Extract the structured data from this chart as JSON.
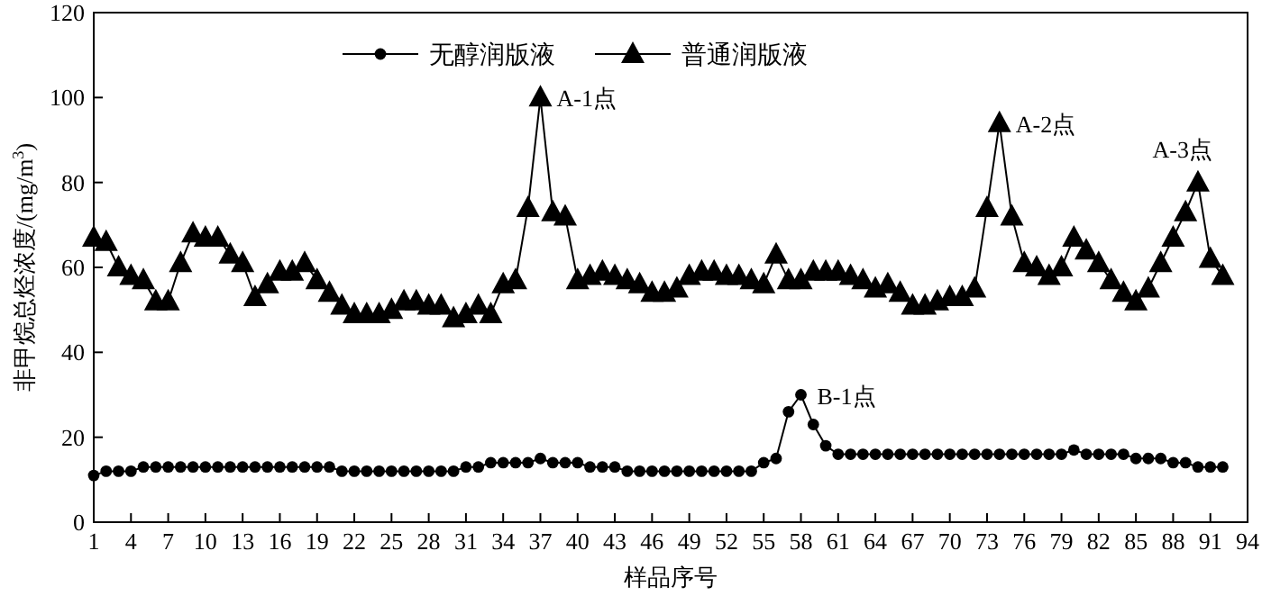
{
  "chart_data": {
    "type": "line",
    "xlabel": "样品序号",
    "ylabel": "非甲烷总烃浓度/(mg/m$^{3}$)",
    "x": [
      1,
      2,
      3,
      4,
      5,
      6,
      7,
      8,
      9,
      10,
      11,
      12,
      13,
      14,
      15,
      16,
      17,
      18,
      19,
      20,
      21,
      22,
      23,
      24,
      25,
      26,
      27,
      28,
      29,
      30,
      31,
      32,
      33,
      34,
      35,
      36,
      37,
      38,
      39,
      40,
      41,
      42,
      43,
      44,
      45,
      46,
      47,
      48,
      49,
      50,
      51,
      52,
      53,
      54,
      55,
      56,
      57,
      58,
      59,
      60,
      61,
      62,
      63,
      64,
      65,
      66,
      67,
      68,
      69,
      70,
      71,
      72,
      73,
      74,
      75,
      76,
      77,
      78,
      79,
      80,
      81,
      82,
      83,
      84,
      85,
      86,
      87,
      88,
      89,
      90,
      91,
      92
    ],
    "xlim": [
      1,
      94
    ],
    "xticks": [
      1,
      4,
      7,
      10,
      13,
      16,
      19,
      22,
      25,
      28,
      31,
      34,
      37,
      40,
      43,
      46,
      49,
      52,
      55,
      58,
      61,
      64,
      67,
      70,
      73,
      76,
      79,
      82,
      85,
      88,
      91,
      94
    ],
    "ylim": [
      0,
      120
    ],
    "yticks": [
      0,
      20,
      40,
      60,
      80,
      100,
      120
    ],
    "grid": false,
    "legend": "top",
    "line_style": "solid",
    "series": [
      {
        "name": "无醇润版液",
        "color": "#000000",
        "marker": "circle",
        "values": [
          11,
          12,
          12,
          12,
          13,
          13,
          13,
          13,
          13,
          13,
          13,
          13,
          13,
          13,
          13,
          13,
          13,
          13,
          13,
          13,
          12,
          12,
          12,
          12,
          12,
          12,
          12,
          12,
          12,
          12,
          13,
          13,
          14,
          14,
          14,
          14,
          15,
          14,
          14,
          14,
          13,
          13,
          13,
          12,
          12,
          12,
          12,
          12,
          12,
          12,
          12,
          12,
          12,
          12,
          14,
          15,
          26,
          30,
          23,
          18,
          16,
          16,
          16,
          16,
          16,
          16,
          16,
          16,
          16,
          16,
          16,
          16,
          16,
          16,
          16,
          16,
          16,
          16,
          16,
          17,
          16,
          16,
          16,
          16,
          15,
          15,
          15,
          14,
          14,
          13,
          13,
          13
        ]
      },
      {
        "name": "普通润版液",
        "color": "#000000",
        "marker": "triangle",
        "values": [
          67,
          66,
          60,
          58,
          57,
          52,
          52,
          61,
          68,
          67,
          67,
          63,
          61,
          53,
          56,
          59,
          59,
          61,
          57,
          54,
          51,
          49,
          49,
          49,
          50,
          52,
          52,
          51,
          51,
          48,
          49,
          51,
          49,
          56,
          57,
          74,
          100,
          73,
          72,
          57,
          58,
          59,
          58,
          57,
          56,
          54,
          54,
          55,
          58,
          59,
          59,
          58,
          58,
          57,
          56,
          63,
          57,
          57,
          59,
          59,
          59,
          58,
          57,
          55,
          56,
          54,
          51,
          51,
          52,
          53,
          53,
          55,
          74,
          94,
          72,
          61,
          60,
          58,
          60,
          67,
          64,
          61,
          57,
          54,
          52,
          55,
          61,
          67,
          73,
          80,
          62,
          58
        ]
      }
    ],
    "annotations": [
      {
        "text": "A-1点",
        "x": 37,
        "y": 100
      },
      {
        "text": "A-2点",
        "x": 74,
        "y": 94
      },
      {
        "text": "A-3点",
        "x": 90,
        "y": 80
      },
      {
        "text": "B-1点",
        "x": 58,
        "y": 30
      }
    ]
  }
}
